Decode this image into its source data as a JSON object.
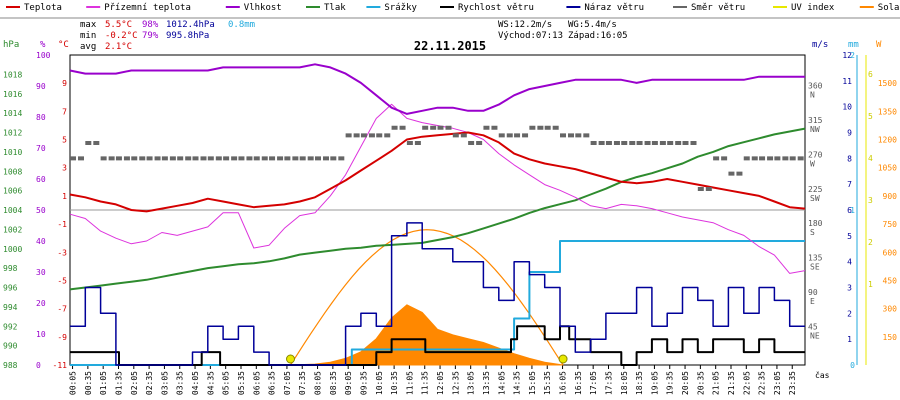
{
  "chart_data": {
    "type": "line",
    "title": "22.11.2015",
    "legend": [
      {
        "label": "Teplota",
        "color": "#d40000"
      },
      {
        "label": "Přízemní teplota",
        "color": "#dd33dd"
      },
      {
        "label": "Vlhkost",
        "color": "#9900cc"
      },
      {
        "label": "Tlak",
        "color": "#2e8b2e"
      },
      {
        "label": "Srážky",
        "color": "#22aadd"
      },
      {
        "label": "Rychlost větru",
        "color": "#000000"
      },
      {
        "label": "Náraz větru",
        "color": "#000099"
      },
      {
        "label": "Směr větru",
        "color": "#666666"
      },
      {
        "label": "UV index",
        "color": "#e8e800"
      },
      {
        "label": "Solar",
        "color": "#ff8800"
      }
    ],
    "stats": {
      "max_label": "max",
      "max_temp": "5.5°C",
      "max_hum": "98%",
      "max_press": "1012.4hPa",
      "rain": "0.8mm",
      "min_label": "min",
      "min_temp": "-0.2°C",
      "min_hum": "79%",
      "min_press": "995.8hPa",
      "avg_label": "avg",
      "avg_temp": "2.1°C",
      "ws": "WS:12.2m/s",
      "wg": "WG:5.4m/s",
      "sunrise": "Východ:07:13",
      "sunset": "Západ:16:05"
    },
    "axes": {
      "hpa": {
        "unit": "hPa",
        "ticks": [
          "1018",
          "1016",
          "1014",
          "1012",
          "1010",
          "1008",
          "1006",
          "1004",
          "1002",
          "1000",
          "998",
          "996",
          "994",
          "992",
          "990",
          "988"
        ],
        "range": [
          988,
          1020
        ]
      },
      "pct": {
        "unit": "%",
        "ticks": [
          "100",
          "90",
          "80",
          "70",
          "60",
          "50",
          "40",
          "30",
          "20",
          "10",
          "0"
        ],
        "range": [
          0,
          100
        ]
      },
      "temp": {
        "unit": "°C",
        "ticks": [
          "9",
          "7",
          "5",
          "3",
          "1",
          "-1",
          "-3",
          "-5",
          "-7",
          "-9",
          "-11"
        ],
        "range": [
          -11,
          11
        ]
      },
      "ms": {
        "unit": "m/s",
        "ticks": [
          "12",
          "11",
          "10",
          "9",
          "8",
          "7",
          "6",
          "5",
          "4",
          "3",
          "2",
          "1"
        ],
        "range": [
          0,
          12
        ]
      },
      "dir": {
        "ticks": [
          [
            "360",
            "N"
          ],
          [
            "315",
            "NW"
          ],
          [
            "270",
            "W"
          ],
          [
            "225",
            "SW"
          ],
          [
            "180",
            "S"
          ],
          [
            "135",
            "SE"
          ],
          [
            "90",
            "E"
          ],
          [
            "45",
            "NE"
          ]
        ],
        "range": [
          0,
          405
        ]
      },
      "mm": {
        "unit": "mm",
        "ticks": [
          "2",
          "1",
          "0"
        ],
        "range": [
          0,
          2
        ]
      },
      "w": {
        "unit": "W",
        "ticks": [
          "1500",
          "1350",
          "1200",
          "1050",
          "900",
          "750",
          "600",
          "450",
          "300",
          "150"
        ],
        "range": [
          0,
          1650
        ]
      },
      "uv_ticks": [
        "6",
        "5",
        "4",
        "3",
        "2",
        "1"
      ],
      "x_label": "čas",
      "x_ticks": [
        "00:05",
        "00:35",
        "01:05",
        "01:35",
        "02:05",
        "02:35",
        "03:05",
        "03:35",
        "04:05",
        "04:35",
        "05:05",
        "05:35",
        "06:05",
        "06:35",
        "07:05",
        "07:35",
        "08:05",
        "08:35",
        "09:05",
        "09:35",
        "10:05",
        "10:35",
        "11:05",
        "11:35",
        "12:05",
        "12:35",
        "13:05",
        "13:35",
        "14:05",
        "14:35",
        "15:05",
        "15:35",
        "16:05",
        "16:35",
        "17:05",
        "17:35",
        "18:05",
        "18:35",
        "19:05",
        "19:35",
        "20:05",
        "20:35",
        "21:05",
        "21:35",
        "22:05",
        "22:35",
        "23:05",
        "23:35"
      ]
    },
    "series": [
      {
        "name": "Teplota",
        "axis": "temp",
        "x": [
          0,
          0.5,
          1,
          1.5,
          2,
          2.5,
          3,
          3.5,
          4,
          4.5,
          5,
          5.5,
          6,
          6.5,
          7,
          7.5,
          8,
          8.5,
          9,
          9.5,
          10,
          10.5,
          11,
          11.5,
          12,
          12.5,
          13,
          13.5,
          14,
          14.5,
          15,
          15.5,
          16,
          16.5,
          17,
          17.5,
          18,
          18.5,
          19,
          19.5,
          20,
          20.5,
          21,
          21.5,
          22,
          22.5,
          23,
          23.5,
          24
        ],
        "values": [
          1.1,
          0.9,
          0.6,
          0.4,
          0,
          -0.1,
          0.1,
          0.3,
          0.5,
          0.8,
          0.6,
          0.4,
          0.2,
          0.3,
          0.4,
          0.6,
          0.9,
          1.5,
          2.1,
          2.8,
          3.5,
          4.2,
          5,
          5.2,
          5.3,
          5.4,
          5.5,
          5.3,
          4.8,
          4,
          3.6,
          3.3,
          3.1,
          2.9,
          2.6,
          2.3,
          2,
          1.9,
          2,
          2.2,
          2,
          1.8,
          1.6,
          1.4,
          1.2,
          1,
          0.6,
          0.2,
          0.1
        ]
      },
      {
        "name": "Přízemní teplota",
        "axis": "temp",
        "x": [
          0,
          0.5,
          1,
          1.5,
          2,
          2.5,
          3,
          3.5,
          4,
          4.5,
          5,
          5.5,
          6,
          6.5,
          7,
          7.5,
          8,
          8.5,
          9,
          9.5,
          10,
          10.5,
          11,
          11.5,
          12,
          12.5,
          13,
          13.5,
          14,
          14.5,
          15,
          15.5,
          16,
          16.5,
          17,
          17.5,
          18,
          18.5,
          19,
          19.5,
          20,
          20.5,
          21,
          21.5,
          22,
          22.5,
          23,
          23.5,
          24
        ],
        "values": [
          -0.3,
          -0.6,
          -1.5,
          -2,
          -2.4,
          -2.2,
          -1.6,
          -1.8,
          -1.5,
          -1.2,
          -0.2,
          -0.2,
          -2.7,
          -2.5,
          -1.3,
          -0.4,
          -0.2,
          1,
          2.5,
          4.5,
          6.5,
          7.5,
          6.5,
          6.2,
          6,
          5.8,
          5.5,
          5,
          4,
          3.2,
          2.5,
          1.8,
          1.4,
          0.9,
          0.3,
          0.1,
          0.4,
          0.3,
          0.1,
          -0.2,
          -0.5,
          -0.7,
          -0.9,
          -1.4,
          -1.8,
          -2.6,
          -3.2,
          -4.5,
          -4.3
        ]
      },
      {
        "name": "Vlhkost",
        "axis": "pct",
        "x": [
          0,
          0.5,
          1,
          1.5,
          2,
          2.5,
          3,
          3.5,
          4,
          4.5,
          5,
          5.5,
          6,
          6.5,
          7,
          7.5,
          8,
          8.5,
          9,
          9.5,
          10,
          10.5,
          11,
          11.5,
          12,
          12.5,
          13,
          13.5,
          14,
          14.5,
          15,
          15.5,
          16,
          16.5,
          17,
          17.5,
          18,
          18.5,
          19,
          19.5,
          20,
          20.5,
          21,
          21.5,
          22,
          22.5,
          23,
          23.5,
          24
        ],
        "values": [
          95,
          94,
          94,
          94,
          95,
          95,
          95,
          95,
          95,
          95,
          96,
          96,
          96,
          96,
          96,
          96,
          97,
          96,
          94,
          91,
          87,
          83,
          81,
          82,
          83,
          83,
          82,
          82,
          84,
          87,
          89,
          90,
          91,
          92,
          92,
          92,
          92,
          91,
          92,
          92,
          92,
          92,
          92,
          92,
          92,
          93,
          93,
          93,
          93
        ]
      },
      {
        "name": "Tlak",
        "axis": "hpa",
        "x": [
          0,
          0.5,
          1,
          1.5,
          2,
          2.5,
          3,
          3.5,
          4,
          4.5,
          5,
          5.5,
          6,
          6.5,
          7,
          7.5,
          8,
          8.5,
          9,
          9.5,
          10,
          10.5,
          11,
          11.5,
          12,
          12.5,
          13,
          13.5,
          14,
          14.5,
          15,
          15.5,
          16,
          16.5,
          17,
          17.5,
          18,
          18.5,
          19,
          19.5,
          20,
          20.5,
          21,
          21.5,
          22,
          22.5,
          23,
          23.5,
          24
        ],
        "values": [
          995.8,
          996,
          996.2,
          996.4,
          996.6,
          996.8,
          997.1,
          997.4,
          997.7,
          998,
          998.2,
          998.4,
          998.5,
          998.7,
          999,
          999.4,
          999.6,
          999.8,
          1000,
          1000.1,
          1000.3,
          1000.4,
          1000.5,
          1000.6,
          1000.9,
          1001.2,
          1001.6,
          1002.1,
          1002.6,
          1003.1,
          1003.7,
          1004.2,
          1004.6,
          1005,
          1005.6,
          1006.2,
          1006.9,
          1007.4,
          1007.8,
          1008.3,
          1008.8,
          1009.5,
          1010,
          1010.6,
          1011,
          1011.4,
          1011.8,
          1012.1,
          1012.4
        ]
      },
      {
        "name": "Rychlost větru",
        "axis": "ms",
        "x": [
          0,
          1.5,
          1.6,
          4,
          4.3,
          4.6,
          4.9,
          6.5,
          7,
          9,
          10,
          10.5,
          11.2,
          11.6,
          14.4,
          14.6,
          15,
          15.5,
          16,
          16.3,
          17,
          18,
          18.5,
          19,
          19.5,
          20,
          20.5,
          21,
          21.5,
          22,
          22.5,
          23,
          23.5,
          24
        ],
        "values": [
          0.5,
          0.5,
          0,
          0,
          0.5,
          0.5,
          0,
          0,
          0,
          0,
          0.5,
          1,
          1,
          0.5,
          1,
          1.5,
          1.5,
          1,
          1.5,
          1,
          0.5,
          0,
          0.5,
          1,
          0.5,
          1,
          0.5,
          1,
          1,
          0.5,
          1,
          0.5,
          0.5,
          0.5
        ]
      },
      {
        "name": "Náraz větru",
        "axis": "ms",
        "x": [
          0,
          0.5,
          1,
          1.5,
          2,
          3,
          4,
          4.5,
          5,
          5.5,
          6,
          6.5,
          7,
          8,
          9,
          9.5,
          10,
          10.5,
          11,
          11.5,
          12,
          12.5,
          13,
          13.5,
          14,
          14.5,
          15,
          15.5,
          16,
          16.5,
          17,
          17.5,
          18,
          18.5,
          19,
          19.5,
          20,
          20.5,
          21,
          21.5,
          22,
          22.5,
          23,
          23.5,
          24
        ],
        "values": [
          1.5,
          3,
          2,
          0,
          0,
          0,
          0.5,
          1.5,
          1,
          1.5,
          0.5,
          0,
          0,
          0,
          1.5,
          2,
          1.5,
          5,
          5.5,
          4.5,
          4.5,
          4,
          4,
          3,
          2.5,
          4,
          3.5,
          3,
          1.5,
          0.5,
          1,
          2,
          2,
          3,
          1.5,
          2,
          3,
          2.5,
          1.5,
          3,
          2,
          3,
          2.5,
          1.5,
          1.5
        ]
      },
      {
        "name": "Srážky",
        "axis": "mm",
        "x": [
          0,
          9.2,
          9.2,
          14.5,
          14.5,
          15,
          15,
          16,
          16,
          24
        ],
        "values": [
          0,
          0,
          0.1,
          0.1,
          0.3,
          0.3,
          0.6,
          0.6,
          0.8,
          0.8
        ]
      },
      {
        "name": "Solar",
        "axis": "w",
        "x": [
          7.2,
          8,
          8.5,
          9,
          9.5,
          10,
          10.5,
          11,
          11.5,
          12,
          12.5,
          13,
          13.5,
          14,
          14.5,
          15,
          15.5,
          16.1
        ],
        "values": [
          0,
          5,
          15,
          35,
          70,
          140,
          250,
          320,
          280,
          190,
          160,
          140,
          120,
          90,
          60,
          35,
          15,
          0
        ]
      },
      {
        "name": "Směr větru",
        "axis": "dir",
        "x": [
          0.25,
          0.75,
          1.25,
          1.75,
          2.25,
          2.75,
          3.25,
          3.75,
          4.25,
          4.75,
          5.25,
          5.75,
          6.25,
          6.75,
          7.25,
          7.75,
          8.25,
          8.75,
          9.25,
          9.75,
          10.25,
          10.75,
          11.25,
          11.75,
          12.25,
          12.75,
          13.25,
          13.75,
          14.25,
          14.75,
          15.25,
          15.75,
          16.25,
          16.75,
          17.25,
          17.75,
          18.25,
          18.75,
          19.25,
          19.75,
          20.25,
          20.75,
          21.25,
          21.75,
          22.25,
          22.75,
          23.25,
          23.75
        ],
        "values": [
          270,
          290,
          270,
          270,
          270,
          270,
          270,
          270,
          270,
          270,
          270,
          270,
          270,
          270,
          270,
          270,
          270,
          270,
          300,
          300,
          300,
          310,
          290,
          310,
          310,
          300,
          290,
          310,
          300,
          300,
          310,
          310,
          300,
          300,
          290,
          290,
          290,
          290,
          290,
          290,
          290,
          230,
          270,
          250,
          270,
          270,
          270,
          270
        ]
      }
    ]
  }
}
